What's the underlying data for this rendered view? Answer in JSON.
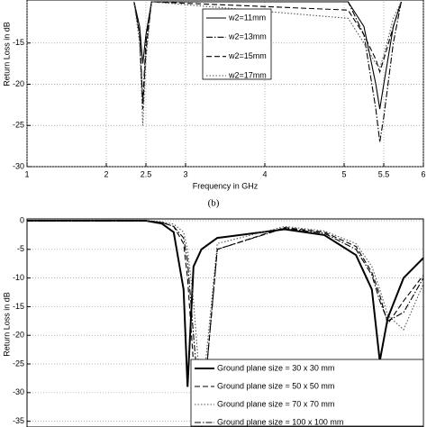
{
  "chart_data": [
    {
      "type": "line",
      "x_label": "Frequency in GHz",
      "y_label": "Return Loss in dB",
      "caption": "(b)",
      "x": [
        2.35,
        2.42,
        2.46,
        2.5,
        2.57,
        5.05,
        5.25,
        5.4,
        5.45,
        5.5,
        5.62,
        5.72
      ],
      "xlim": [
        1,
        6
      ],
      "xticks": [
        1,
        2,
        2.5,
        3,
        4,
        5,
        5.5,
        6
      ],
      "ylim": [
        -30,
        -10
      ],
      "yticks": [
        -15,
        -20,
        -25,
        -30
      ],
      "grid": true,
      "legend": "top-center",
      "series": [
        {
          "name": "w2=11mm",
          "color": "#000000",
          "style": "solid",
          "values": [
            -10,
            -13,
            -17.5,
            -14,
            -10,
            -10,
            -13,
            -20,
            -23,
            -20,
            -13,
            -10
          ]
        },
        {
          "name": "w2=13mm",
          "color": "#000000",
          "style": "dashdot",
          "values": [
            -10,
            -14,
            -22,
            -15,
            -10,
            -10,
            -14,
            -23,
            -27,
            -24,
            -15,
            -10
          ]
        },
        {
          "name": "w2=15mm",
          "color": "#000000",
          "style": "dashed",
          "values": [
            -10,
            -14,
            -23,
            -16,
            -10,
            -11,
            -14,
            -17,
            -18.5,
            -17,
            -13,
            -10
          ]
        },
        {
          "name": "w2=17mm",
          "color": "#555555",
          "style": "dotted",
          "values": [
            -10,
            -15,
            -25,
            -17,
            -10,
            -12,
            -15,
            -17.5,
            -18,
            -16.5,
            -12,
            -10
          ]
        }
      ]
    },
    {
      "type": "line",
      "y_label": "Return Loss in dB",
      "x": [
        0,
        3,
        3.4,
        3.7,
        3.95,
        4.05,
        4.2,
        4.4,
        4.8,
        6.5,
        7.5,
        8.3,
        8.7,
        8.9,
        9.1,
        9.5,
        10
      ],
      "xlim": [
        0,
        10
      ],
      "ylim": [
        -36,
        0
      ],
      "yticks": [
        0,
        -5,
        -10,
        -15,
        -20,
        -25,
        -30,
        -35
      ],
      "grid": true,
      "legend": "bottom-right",
      "series": [
        {
          "name": "Ground plane size = 30 x 30 mm",
          "color": "#000000",
          "style": "thick",
          "values": [
            0,
            0,
            -0.5,
            -2,
            -12,
            -29,
            -8,
            -5,
            -3,
            -1.5,
            -2.5,
            -6,
            -12,
            -24.5,
            -17,
            -10,
            -6.5
          ]
        },
        {
          "name": "Ground plane size = 50 x 50 mm",
          "color": "#000000",
          "style": "dashed",
          "values": [
            0,
            0,
            -0.3,
            -1,
            -4,
            -10,
            -25,
            -36,
            -5,
            -1.2,
            -2,
            -4.5,
            -9,
            -13,
            -18,
            -14,
            -9.5
          ]
        },
        {
          "name": "Ground plane size = 70 x 70 mm",
          "color": "#555555",
          "style": "dotted",
          "values": [
            0,
            0,
            -0.2,
            -0.6,
            -2,
            -5,
            -14,
            -32,
            -4,
            -1,
            -1.8,
            -4,
            -8,
            -12,
            -16.5,
            -19,
            -11
          ]
        },
        {
          "name": "Ground plane size = 100 x 100 mm",
          "color": "#000000",
          "style": "dashdot",
          "values": [
            0,
            0,
            -0.3,
            -1,
            -3,
            -7,
            -20,
            -36,
            -5,
            -1.3,
            -2.2,
            -5,
            -9.5,
            -14,
            -17.5,
            -16,
            -10
          ]
        }
      ]
    }
  ]
}
